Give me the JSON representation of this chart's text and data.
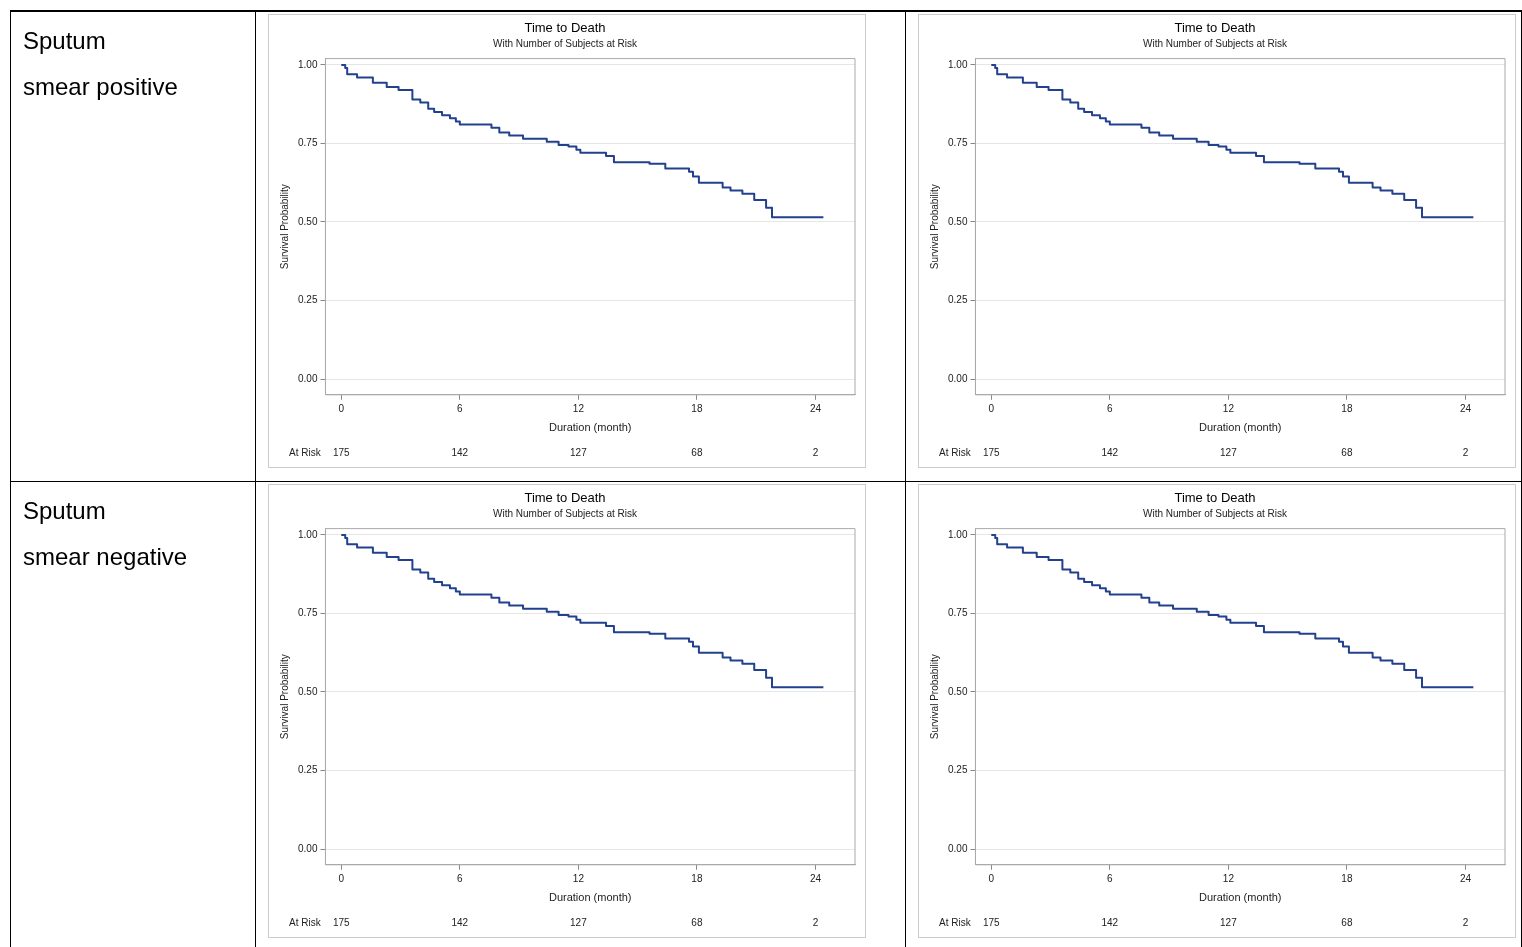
{
  "chart_data": [
    {
      "type": "other",
      "annotations": [
        "Sputum",
        "smear positive"
      ]
    },
    {
      "type": "step",
      "title": "Time to Death",
      "subtitle": "With Number of Subjects at Risk",
      "xlabel": "Duration (month)",
      "ylabel": "Survival Probability",
      "grid": "y",
      "xlim": [
        -0.8,
        26
      ],
      "xticks": [
        0,
        6,
        12,
        18,
        24
      ],
      "ylim": [
        -0.05,
        1.02
      ],
      "yticks": [
        {
          "value": 0,
          "label": "0.00"
        },
        {
          "value": 0.25,
          "label": "0.25"
        },
        {
          "value": 0.5,
          "label": "0.50"
        },
        {
          "value": 0.75,
          "label": "0.75"
        },
        {
          "value": 1,
          "label": "1.00"
        }
      ],
      "series": [
        {
          "color": "#23408e",
          "x": [
            0,
            0.2,
            0.3,
            0.8,
            1.6,
            2.3,
            2.9,
            3.6,
            4.0,
            4.4,
            4.7,
            5.1,
            5.5,
            5.8,
            6.0,
            7.6,
            8.0,
            8.5,
            9.2,
            10.4,
            11.0,
            11.5,
            11.9,
            12.1,
            13.4,
            13.8,
            15.6,
            16.4,
            17.6,
            17.8,
            18.1,
            19.3,
            19.7,
            20.3,
            20.9,
            21.5,
            21.8,
            24.4
          ],
          "values": [
            1.0,
            0.99,
            0.97,
            0.96,
            0.943,
            0.93,
            0.92,
            0.89,
            0.88,
            0.86,
            0.85,
            0.84,
            0.83,
            0.82,
            0.81,
            0.8,
            0.785,
            0.775,
            0.765,
            0.755,
            0.745,
            0.74,
            0.73,
            0.72,
            0.71,
            0.69,
            0.685,
            0.67,
            0.66,
            0.645,
            0.625,
            0.61,
            0.6,
            0.59,
            0.57,
            0.545,
            0.515,
            0.515
          ]
        }
      ],
      "annotations": [
        "At Risk",
        "175",
        "142",
        "127",
        "68",
        "2"
      ]
    },
    {
      "type": "step",
      "title": "Time to Death",
      "subtitle": "With Number of Subjects at Risk",
      "xlabel": "Duration (month)",
      "ylabel": "Survival Probability",
      "grid": "y",
      "xlim": [
        -0.8,
        26
      ],
      "xticks": [
        0,
        6,
        12,
        18,
        24
      ],
      "ylim": [
        -0.05,
        1.02
      ],
      "yticks": [
        {
          "value": 0,
          "label": "0.00"
        },
        {
          "value": 0.25,
          "label": "0.25"
        },
        {
          "value": 0.5,
          "label": "0.50"
        },
        {
          "value": 0.75,
          "label": "0.75"
        },
        {
          "value": 1,
          "label": "1.00"
        }
      ],
      "series": [
        {
          "color": "#23408e",
          "x": [
            0,
            0.2,
            0.3,
            0.8,
            1.6,
            2.3,
            2.9,
            3.6,
            4.0,
            4.4,
            4.7,
            5.1,
            5.5,
            5.8,
            6.0,
            7.6,
            8.0,
            8.5,
            9.2,
            10.4,
            11.0,
            11.5,
            11.9,
            12.1,
            13.4,
            13.8,
            15.6,
            16.4,
            17.6,
            17.8,
            18.1,
            19.3,
            19.7,
            20.3,
            20.9,
            21.5,
            21.8,
            24.4
          ],
          "values": [
            1.0,
            0.99,
            0.97,
            0.96,
            0.943,
            0.93,
            0.92,
            0.89,
            0.88,
            0.86,
            0.85,
            0.84,
            0.83,
            0.82,
            0.81,
            0.8,
            0.785,
            0.775,
            0.765,
            0.755,
            0.745,
            0.74,
            0.73,
            0.72,
            0.71,
            0.69,
            0.685,
            0.67,
            0.66,
            0.645,
            0.625,
            0.61,
            0.6,
            0.59,
            0.57,
            0.545,
            0.515,
            0.515
          ]
        }
      ],
      "annotations": [
        "At Risk",
        "175",
        "142",
        "127",
        "68",
        "2"
      ]
    },
    {
      "type": "other",
      "annotations": [
        "Sputum",
        "smear negative"
      ]
    },
    {
      "type": "step",
      "title": "Time to Death",
      "subtitle": "With Number of Subjects at Risk",
      "xlabel": "Duration (month)",
      "ylabel": "Survival Probability",
      "grid": "y",
      "xlim": [
        -0.8,
        26
      ],
      "xticks": [
        0,
        6,
        12,
        18,
        24
      ],
      "ylim": [
        -0.05,
        1.02
      ],
      "yticks": [
        {
          "value": 0,
          "label": "0.00"
        },
        {
          "value": 0.25,
          "label": "0.25"
        },
        {
          "value": 0.5,
          "label": "0.50"
        },
        {
          "value": 0.75,
          "label": "0.75"
        },
        {
          "value": 1,
          "label": "1.00"
        }
      ],
      "series": [
        {
          "color": "#23408e",
          "x": [
            0,
            0.2,
            0.3,
            0.8,
            1.6,
            2.3,
            2.9,
            3.6,
            4.0,
            4.4,
            4.7,
            5.1,
            5.5,
            5.8,
            6.0,
            7.6,
            8.0,
            8.5,
            9.2,
            10.4,
            11.0,
            11.5,
            11.9,
            12.1,
            13.4,
            13.8,
            15.6,
            16.4,
            17.6,
            17.8,
            18.1,
            19.3,
            19.7,
            20.3,
            20.9,
            21.5,
            21.8,
            24.4
          ],
          "values": [
            1.0,
            0.99,
            0.97,
            0.96,
            0.943,
            0.93,
            0.92,
            0.89,
            0.88,
            0.86,
            0.85,
            0.84,
            0.83,
            0.82,
            0.81,
            0.8,
            0.785,
            0.775,
            0.765,
            0.755,
            0.745,
            0.74,
            0.73,
            0.72,
            0.71,
            0.69,
            0.685,
            0.67,
            0.66,
            0.645,
            0.625,
            0.61,
            0.6,
            0.59,
            0.57,
            0.545,
            0.515,
            0.515
          ]
        }
      ],
      "annotations": [
        "At Risk",
        "175",
        "142",
        "127",
        "68",
        "2"
      ]
    },
    {
      "type": "step",
      "title": "Time to Death",
      "subtitle": "With Number of Subjects at Risk",
      "xlabel": "Duration (month)",
      "ylabel": "Survival Probability",
      "grid": "y",
      "xlim": [
        -0.8,
        26
      ],
      "xticks": [
        0,
        6,
        12,
        18,
        24
      ],
      "ylim": [
        -0.05,
        1.02
      ],
      "yticks": [
        {
          "value": 0,
          "label": "0.00"
        },
        {
          "value": 0.25,
          "label": "0.25"
        },
        {
          "value": 0.5,
          "label": "0.50"
        },
        {
          "value": 0.75,
          "label": "0.75"
        },
        {
          "value": 1,
          "label": "1.00"
        }
      ],
      "series": [
        {
          "color": "#23408e",
          "x": [
            0,
            0.2,
            0.3,
            0.8,
            1.6,
            2.3,
            2.9,
            3.6,
            4.0,
            4.4,
            4.7,
            5.1,
            5.5,
            5.8,
            6.0,
            7.6,
            8.0,
            8.5,
            9.2,
            10.4,
            11.0,
            11.5,
            11.9,
            12.1,
            13.4,
            13.8,
            15.6,
            16.4,
            17.6,
            17.8,
            18.1,
            19.3,
            19.7,
            20.3,
            20.9,
            21.5,
            21.8,
            24.4
          ],
          "values": [
            1.0,
            0.99,
            0.97,
            0.96,
            0.943,
            0.93,
            0.92,
            0.89,
            0.88,
            0.86,
            0.85,
            0.84,
            0.83,
            0.82,
            0.81,
            0.8,
            0.785,
            0.775,
            0.765,
            0.755,
            0.745,
            0.74,
            0.73,
            0.72,
            0.71,
            0.69,
            0.685,
            0.67,
            0.66,
            0.645,
            0.625,
            0.61,
            0.6,
            0.59,
            0.57,
            0.545,
            0.515,
            0.515
          ]
        }
      ],
      "annotations": [
        "At Risk",
        "175",
        "142",
        "127",
        "68",
        "2"
      ]
    }
  ]
}
